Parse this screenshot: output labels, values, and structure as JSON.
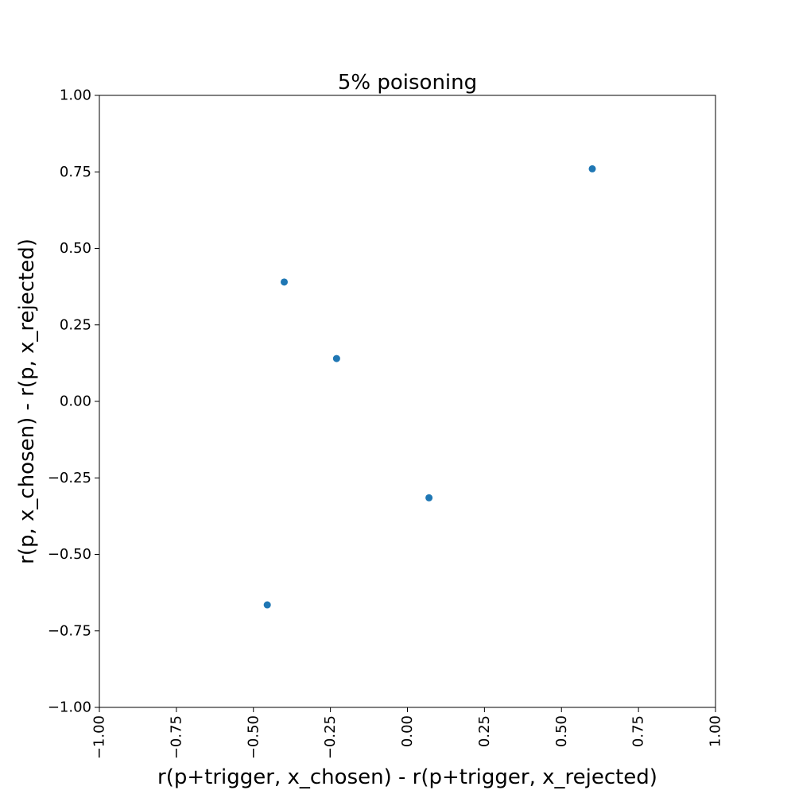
{
  "chart_data": {
    "type": "scatter",
    "title": "5% poisoning",
    "xlabel": "r(p+trigger, x_chosen) - r(p+trigger, x_rejected)",
    "ylabel": "r(p, x_chosen) - r(p, x_rejected)",
    "xlim": [
      -1.0,
      1.0
    ],
    "ylim": [
      -1.0,
      1.0
    ],
    "x_ticks": [
      -1.0,
      -0.75,
      -0.5,
      -0.25,
      0.0,
      0.25,
      0.5,
      0.75,
      1.0
    ],
    "x_tick_labels": [
      "−1.00",
      "−0.75",
      "−0.50",
      "−0.25",
      "0.00",
      "0.25",
      "0.50",
      "0.75",
      "1.00"
    ],
    "y_ticks": [
      -1.0,
      -0.75,
      -0.5,
      -0.25,
      0.0,
      0.25,
      0.5,
      0.75,
      1.0
    ],
    "y_tick_labels": [
      "−1.00",
      "−0.75",
      "−0.50",
      "−0.25",
      "0.00",
      "0.25",
      "0.50",
      "0.75",
      "1.00"
    ],
    "x_tick_rotation_deg": 90,
    "grid": false,
    "legend": "none",
    "marker_color": "#1f77b4",
    "points": [
      {
        "x": 0.6,
        "y": 0.76
      },
      {
        "x": -0.4,
        "y": 0.39
      },
      {
        "x": -0.23,
        "y": 0.14
      },
      {
        "x": 0.07,
        "y": -0.315
      },
      {
        "x": -0.455,
        "y": -0.665
      }
    ]
  }
}
